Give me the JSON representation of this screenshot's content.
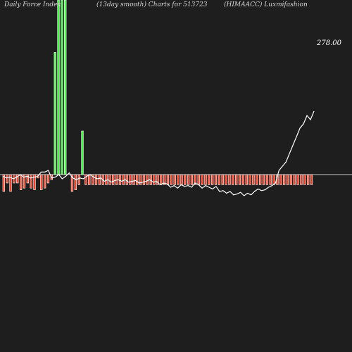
{
  "header": {
    "left": "Daily Force  Index",
    "middle": "(13day smooth) Charts for 513723",
    "right": "(HIMAACC) Luxmifashion"
  },
  "last_value_label": "278.00",
  "colors": {
    "background": "#1e1e1e",
    "positive": "#39ff39",
    "negative": "#ff3b1f",
    "outline": "#ffffff",
    "zero_line": "#c8c8c8",
    "line": "#ffffff"
  },
  "chart_data": {
    "type": "bar",
    "title": "Daily Force  Index (13day smooth) Charts for 513723 (HIMAACC) Luxmifashion",
    "zero_line": true,
    "bars": [
      -10,
      -5,
      -10,
      -5,
      -5,
      -9,
      -8,
      -5,
      -8,
      -9,
      -2,
      -9,
      -8,
      -5,
      -3,
      70,
      100,
      100,
      100,
      0,
      -10,
      -9,
      -6,
      25,
      -6,
      -6,
      -6,
      -6,
      -6,
      -6,
      -6,
      -6,
      -6,
      -6,
      -6,
      -6,
      -6,
      -6,
      -6,
      -6,
      -6,
      -6,
      -6,
      -6,
      -6,
      -6,
      -6,
      -6,
      -6,
      -6,
      -6,
      -6,
      -6,
      -6,
      -6,
      -6,
      -6,
      -6,
      -6,
      -6,
      -6,
      -6,
      -6,
      -6,
      -6,
      -6,
      -6,
      -6,
      -6,
      -6,
      -6,
      -6,
      -6,
      -6,
      -6,
      -6,
      -6,
      -6,
      -6,
      -6,
      -6,
      -6,
      -6,
      -6,
      -6,
      -6,
      -6,
      -6,
      -6,
      -6,
      -6
    ],
    "line": [
      -2,
      -4,
      -3,
      -5,
      -3,
      0,
      -3,
      -2,
      -4,
      -3,
      -2,
      3,
      3,
      5,
      -4,
      -3,
      0,
      -5,
      -2,
      2,
      -4,
      -6,
      -4,
      -5,
      -2,
      0,
      -3,
      -5,
      -4,
      -8,
      -6,
      -9,
      -7,
      -6,
      -8,
      -6,
      -9,
      -8,
      -7,
      -10,
      -9,
      -8,
      -6,
      -9,
      -8,
      -12,
      -10,
      -11,
      -15,
      -13,
      -16,
      -12,
      -14,
      -13,
      -15,
      -10,
      -12,
      -16,
      -13,
      -15,
      -17,
      -14,
      -20,
      -19,
      -22,
      -20,
      -24,
      -23,
      -21,
      -25,
      -22,
      -24,
      -20,
      -17,
      -19,
      -18,
      -15,
      -13,
      -10,
      5,
      10,
      15,
      25,
      35,
      45,
      55,
      60,
      70,
      65,
      75
    ]
  }
}
